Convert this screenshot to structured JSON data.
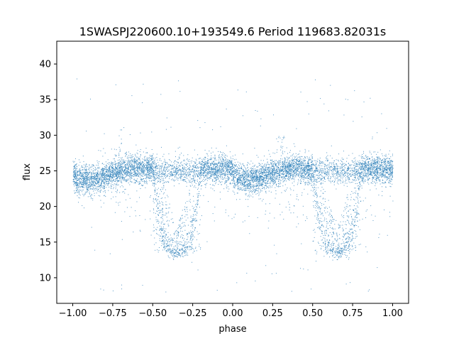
{
  "chart_data": {
    "type": "scatter",
    "title": "1SWASPJ220600.10+193549.6 Period 119683.82031s",
    "xlabel": "phase",
    "ylabel": "flux",
    "xlim": [
      -1.1,
      1.1
    ],
    "ylim": [
      6.4,
      43.2
    ],
    "xticks": [
      -1.0,
      -0.75,
      -0.5,
      -0.25,
      0.0,
      0.25,
      0.5,
      0.75,
      1.0
    ],
    "xtick_labels": [
      "−1.00",
      "−0.75",
      "−0.50",
      "−0.25",
      "0.00",
      "0.25",
      "0.50",
      "0.75",
      "1.00"
    ],
    "yticks": [
      10,
      15,
      20,
      25,
      30,
      35,
      40
    ],
    "ytick_labels": [
      "10",
      "15",
      "20",
      "25",
      "30",
      "35",
      "40"
    ],
    "grid": false,
    "legend": "none",
    "point_color": "#1f77b4",
    "series": [
      {
        "description_points": [
          {
            "x": -1.0,
            "y": 24.5
          },
          {
            "x": -0.9,
            "y": 24.3
          },
          {
            "x": -0.8,
            "y": 24.0
          },
          {
            "x": -0.7,
            "y": 25.2
          },
          {
            "x": -0.62,
            "y": 25.5
          },
          {
            "x": -0.55,
            "y": 24.8
          },
          {
            "x": -0.5,
            "y": 18.0
          },
          {
            "x": -0.45,
            "y": 13.5
          },
          {
            "x": -0.35,
            "y": 13.5
          },
          {
            "x": -0.25,
            "y": 13.5
          },
          {
            "x": -0.2,
            "y": 20.0
          },
          {
            "x": -0.15,
            "y": 24.5
          },
          {
            "x": -0.05,
            "y": 25.2
          },
          {
            "x": 0.0,
            "y": 24.5
          },
          {
            "x": 0.1,
            "y": 24.3
          },
          {
            "x": 0.2,
            "y": 24.0
          },
          {
            "x": 0.3,
            "y": 25.2
          },
          {
            "x": 0.38,
            "y": 25.5
          },
          {
            "x": 0.45,
            "y": 24.8
          },
          {
            "x": 0.5,
            "y": 18.0
          },
          {
            "x": 0.55,
            "y": 13.5
          },
          {
            "x": 0.65,
            "y": 13.5
          },
          {
            "x": 0.75,
            "y": 13.5
          },
          {
            "x": 0.8,
            "y": 20.0
          },
          {
            "x": 0.85,
            "y": 24.5
          },
          {
            "x": 0.95,
            "y": 25.2
          },
          {
            "x": 1.0,
            "y": 24.5
          }
        ]
      }
    ]
  }
}
